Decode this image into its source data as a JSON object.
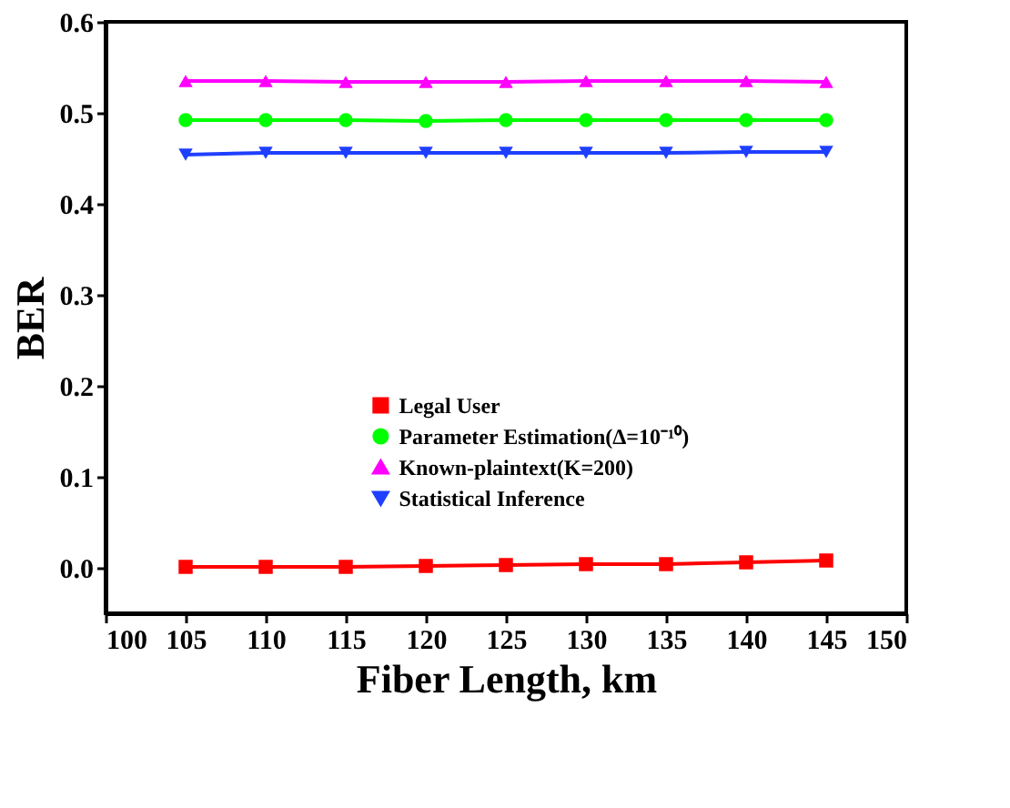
{
  "chart_data": {
    "type": "line",
    "xlabel": "Fiber Length, km",
    "ylabel": "BER",
    "x": [
      105,
      110,
      115,
      120,
      125,
      130,
      135,
      140,
      145
    ],
    "xlim": [
      100,
      150
    ],
    "xticks": [
      100,
      105,
      110,
      115,
      120,
      125,
      130,
      135,
      140,
      145,
      150
    ],
    "ylim": [
      -0.05,
      0.6
    ],
    "yticks": [
      {
        "value": 0,
        "label": "0.0"
      },
      0.1,
      0.2,
      0.3,
      0.4,
      0.5,
      0.6
    ],
    "grid": false,
    "legend": "bottom right",
    "line_style": "solid",
    "series": [
      {
        "name": "Legal User",
        "color": "#ff0000",
        "marker": "square",
        "values": [
          0.001,
          0.001,
          0.001,
          0.002,
          0.003,
          0.004,
          0.004,
          0.006,
          0.008
        ]
      },
      {
        "name": "Parameter Estimation(Δ=10⁻¹⁰)",
        "color": "#00ff00",
        "marker": "circle",
        "values": [
          0.492,
          0.492,
          0.492,
          0.491,
          0.492,
          0.492,
          0.492,
          0.492,
          0.492
        ]
      },
      {
        "name": "Known-plaintext(K=200)",
        "color": "#ff00ff",
        "marker": "triangle",
        "values": [
          0.535,
          0.535,
          0.534,
          0.534,
          0.534,
          0.535,
          0.535,
          0.535,
          0.534
        ]
      },
      {
        "name": "Statistical Inference",
        "color": "#1f3fff",
        "marker": "triangle-down",
        "values": [
          0.454,
          0.456,
          0.456,
          0.456,
          0.456,
          0.456,
          0.456,
          0.457,
          0.457
        ]
      }
    ]
  }
}
